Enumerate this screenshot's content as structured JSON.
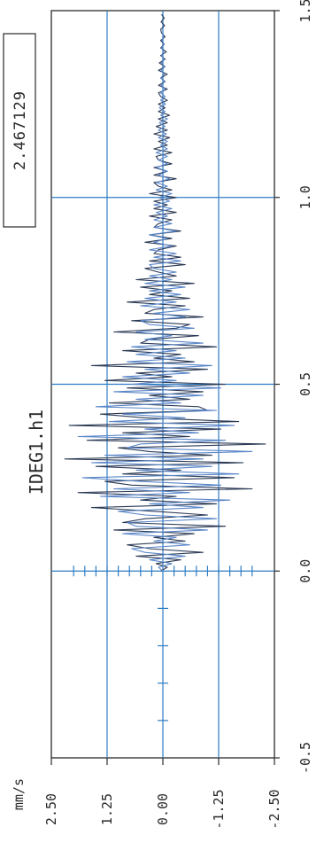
{
  "chart_data": {
    "type": "line",
    "title": "IDEG1.h1",
    "value_box": "2.467129",
    "ylabel": "mm/s",
    "xlabel": "",
    "xlim": [
      -0.5,
      1.5
    ],
    "ylim": [
      -2.5,
      2.5
    ],
    "x_ticks": [
      "-0.5",
      "0.0",
      "0.5",
      "1.0",
      "1.5"
    ],
    "y_ticks": [
      "2.50",
      "1.25",
      "0.00",
      "-1.25",
      "-2.50"
    ],
    "grid": true,
    "orientation": "rotated-90",
    "series": [
      {
        "color": "#2b3a55",
        "sample_step": 0.01,
        "x_start": 0.0,
        "y": [
          0.05,
          -0.1,
          0.15,
          -0.4,
          0.6,
          -0.9,
          0.3,
          0.8,
          -0.5,
          0.2,
          -0.7,
          1.1,
          -1.4,
          0.9,
          0.4,
          -1.0,
          0.2,
          1.6,
          -1.2,
          0.5,
          -0.3,
          1.9,
          -2.0,
          0.7,
          1.3,
          -1.6,
          0.9,
          -0.4,
          1.5,
          -1.8,
          2.2,
          -1.1,
          0.3,
          1.0,
          -2.3,
          1.7,
          -0.6,
          0.9,
          -1.3,
          2.1,
          -1.7,
          0.4,
          1.4,
          -1.0,
          -0.8,
          1.2,
          -0.6,
          0.3,
          -0.9,
          0.8,
          -1.4,
          1.3,
          -0.2,
          0.6,
          -1.0,
          1.6,
          -0.7,
          0.2,
          -0.4,
          0.9,
          -1.2,
          0.5,
          0.3,
          -0.8,
          1.1,
          -0.3,
          -0.6,
          0.7,
          -0.9,
          0.4,
          0.2,
          -0.5,
          0.8,
          -0.6,
          0.3,
          -0.2,
          0.5,
          -0.7,
          0.6,
          -0.3,
          0.1,
          0.4,
          -0.5,
          0.3,
          -0.4,
          0.2,
          0.1,
          -0.3,
          0.4,
          -0.2,
          0.3,
          -0.4,
          0.2,
          0.1,
          -0.2,
          0.3,
          -0.3,
          0.2,
          -0.1,
          0.2,
          -0.3,
          0.3,
          -0.2,
          0.1,
          0.2,
          -0.3,
          0.2,
          -0.1,
          0.2,
          -0.2,
          0.1,
          0.15,
          -0.2,
          0.2,
          -0.1,
          0.1,
          -0.15,
          0.2,
          -0.1,
          0.15,
          -0.1,
          0.1,
          -0.15,
          0.1,
          -0.05,
          0.1,
          -0.1,
          0.05,
          0.1,
          -0.1,
          0.1,
          -0.05,
          0.05,
          -0.1,
          0.1,
          -0.05,
          0.08,
          -0.05,
          0.05,
          -0.08,
          0.05,
          -0.03,
          0.05,
          -0.05,
          0.03,
          0.05,
          -0.04,
          0.04,
          -0.03,
          0.03
        ]
      },
      {
        "color": "#5a86c8",
        "sample_step": 0.01,
        "x_start": 0.0,
        "y": [
          0.0,
          0.1,
          -0.2,
          0.3,
          -0.5,
          0.4,
          0.7,
          -0.6,
          0.2,
          -0.3,
          0.9,
          -1.0,
          0.6,
          0.8,
          -1.2,
          0.4,
          1.0,
          -0.9,
          0.3,
          -1.5,
          1.4,
          -0.6,
          1.1,
          -1.3,
          0.5,
          1.8,
          -1.7,
          0.6,
          -1.1,
          1.6,
          -0.9,
          1.3,
          -2.0,
          0.8,
          0.5,
          -1.4,
          1.9,
          -0.8,
          0.4,
          -1.6,
          1.2,
          -0.5,
          0.9,
          -1.2,
          1.5,
          -0.4,
          0.6,
          -0.9,
          1.1,
          -1.3,
          0.7,
          -0.3,
          0.9,
          -0.6,
          0.4,
          -1.1,
          0.8,
          -0.5,
          0.6,
          -0.3,
          0.7,
          -0.9,
          0.4,
          -0.2,
          0.6,
          -0.7,
          0.3,
          0.5,
          -0.5,
          0.2,
          -0.6,
          0.5,
          -0.3,
          0.4,
          -0.4,
          0.3,
          -0.5,
          0.4,
          -0.2,
          0.3,
          -0.3,
          0.2,
          0.3,
          -0.4,
          0.2,
          -0.3,
          0.3,
          -0.2,
          0.2,
          -0.1,
          0.3,
          -0.3,
          0.2,
          -0.2,
          0.2,
          -0.1,
          0.15,
          -0.2,
          0.2,
          -0.15,
          0.1,
          -0.2,
          0.15,
          -0.1,
          0.15,
          -0.15,
          0.1,
          -0.1,
          0.15,
          -0.1,
          0.1,
          -0.1,
          0.15,
          -0.1,
          0.05,
          -0.1,
          0.1,
          -0.08,
          0.1,
          -0.05,
          0.08,
          -0.1,
          0.05,
          -0.05,
          0.08,
          -0.06,
          0.05,
          -0.05,
          0.05,
          -0.05,
          0.04,
          -0.04,
          0.05,
          -0.03,
          0.04,
          -0.04,
          0.03,
          -0.03,
          0.03,
          -0.02,
          0.03,
          -0.03,
          0.02,
          -0.02,
          0.02
        ]
      }
    ]
  }
}
